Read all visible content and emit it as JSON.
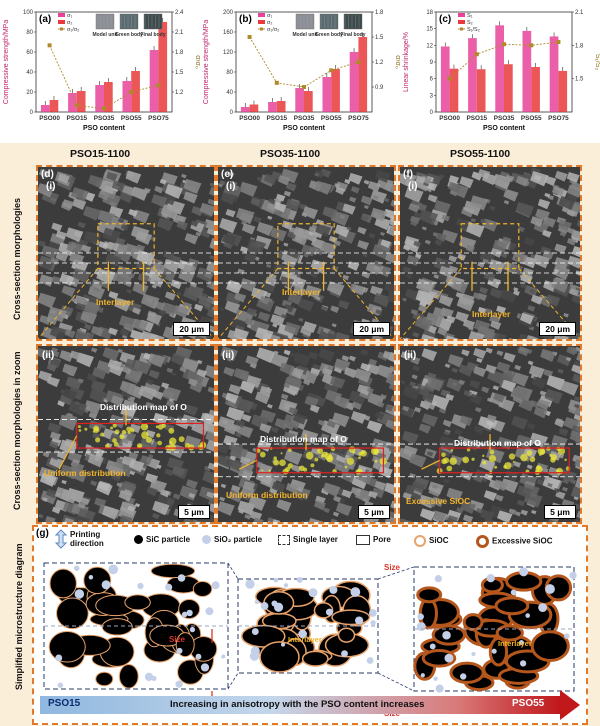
{
  "top_panels": {
    "a": {
      "label": "(a)",
      "ylabel": "Compressive strength/MPa",
      "yrlabel": "σ/σ₀",
      "xlabel": "PSO content",
      "legend": [
        "σ₁",
        "σ₂",
        "σ₁/σ₂"
      ],
      "images": [
        "Model unit",
        "Green body",
        "Final body"
      ]
    },
    "b": {
      "label": "(b)",
      "ylabel": "Compressive strength/MPa",
      "yrlabel": "σ/σ₀",
      "xlabel": "PSO content",
      "legend": [
        "σ₁",
        "σ₂",
        "σ₁/σ₂"
      ],
      "images": [
        "Model unit",
        "Green body",
        "Final body"
      ]
    },
    "c": {
      "label": "(c)",
      "ylabel": "Linear shrinkage/%",
      "yrlabel": "S₁/S₂",
      "xlabel": "PSO content",
      "legend": [
        "S₁",
        "S₂",
        "S₁/S₂"
      ]
    }
  },
  "chart_data": [
    {
      "type": "bar",
      "title": "",
      "xlabel": "PSO content",
      "ylabel": "Compressive strength/MPa",
      "y2label": "σ/σ₀",
      "categories": [
        "PSO00",
        "PSO15",
        "PSO35",
        "PSO55",
        "PSO75"
      ],
      "ylim": [
        0,
        100
      ],
      "y2lim": [
        0.9,
        2.4
      ],
      "yticks": [
        "0",
        "20",
        "40",
        "60",
        "80",
        "100"
      ],
      "y2ticks": [
        "1.2",
        "1.5",
        "1.8",
        "2.1",
        "2.4"
      ],
      "series": [
        {
          "name": "σ₁",
          "values": [
            7,
            19,
            27,
            31,
            62
          ]
        },
        {
          "name": "σ₂",
          "values": [
            12,
            21,
            30,
            41,
            90
          ]
        },
        {
          "name": "σ₁/σ₂",
          "values": [
            1.9,
            1.0,
            0.95,
            1.2,
            1.3
          ]
        }
      ]
    },
    {
      "type": "bar",
      "title": "",
      "xlabel": "PSO content",
      "ylabel": "Compressive strength/MPa",
      "y2label": "σ/σ₀",
      "categories": [
        "PSO00",
        "PSO15",
        "PSO35",
        "PSO55",
        "PSO75"
      ],
      "ylim": [
        0,
        200
      ],
      "y2lim": [
        0.6,
        1.8
      ],
      "yticks": [
        "0",
        "40",
        "80",
        "120",
        "160",
        "200"
      ],
      "y2ticks": [
        "0.9",
        "1.2",
        "1.5",
        "1.8"
      ],
      "series": [
        {
          "name": "σ₁",
          "values": [
            10,
            20,
            48,
            70,
            120
          ]
        },
        {
          "name": "σ₂",
          "values": [
            15,
            22,
            42,
            86,
            150
          ]
        },
        {
          "name": "σ₁/σ₂",
          "values": [
            1.5,
            0.95,
            0.9,
            1.1,
            1.2
          ]
        }
      ]
    },
    {
      "type": "bar",
      "title": "",
      "xlabel": "PSO content",
      "ylabel": "Linear shrinkage/%",
      "y2label": "S₁/S₂",
      "categories": [
        "PSO00",
        "PSO15",
        "PSO35",
        "PSO55",
        "PSO75"
      ],
      "ylim": [
        0,
        18
      ],
      "y2lim": [
        1.2,
        2.1
      ],
      "yticks": [
        "0",
        "3",
        "6",
        "9",
        "12",
        "15",
        "18"
      ],
      "y2ticks": [
        "1.5",
        "1.8",
        "2.1"
      ],
      "series": [
        {
          "name": "S₁",
          "values": [
            11.8,
            13.3,
            15.6,
            14.6,
            13.6
          ]
        },
        {
          "name": "S₂",
          "values": [
            7.8,
            7.7,
            8.6,
            8.1,
            7.4
          ]
        },
        {
          "name": "S₁/S₂",
          "values": [
            1.5,
            1.72,
            1.81,
            1.8,
            1.83
          ]
        }
      ]
    }
  ],
  "sections": {
    "col_titles": [
      "PSO15-1100",
      "PSO35-1100",
      "PSO55-1100"
    ],
    "row_label_1": "Cross-section morphologies",
    "row_label_2": "Cross-section morphologies in zoom",
    "row_label_3": "Simplified microstructure diagram",
    "d_label": "(d)",
    "e_label": "(e)",
    "f_label": "(f)",
    "sub_i": "(i)",
    "sub_ii": "(ii)",
    "scale_top": "20 μm",
    "scale_bot": "5 μm",
    "interlayer": "Interlayer",
    "dist_map": "Distribution map of O",
    "uniform": "Uniform distribution",
    "excessive": "Excessive SiOC"
  },
  "diagram": {
    "label": "(g)",
    "legend": [
      "Printing direction",
      "SiC particle",
      "SiO₂ particle",
      "Single layer",
      "Pore",
      "SiOC",
      "Excessive SiOC"
    ],
    "size": "Size",
    "interlayer": "Interlayer",
    "left_end": "PSO15",
    "right_end": "PSO55",
    "arrow_text": "Increasing in anisotropy with the PSO content increases"
  },
  "colors": {
    "sigma1": "#e8439a",
    "sigma2": "#e83a3a",
    "ratio": "#b08a2a",
    "accent": "#e07a2a",
    "highlight": "#f2b42a",
    "band": "#fbeed9"
  }
}
